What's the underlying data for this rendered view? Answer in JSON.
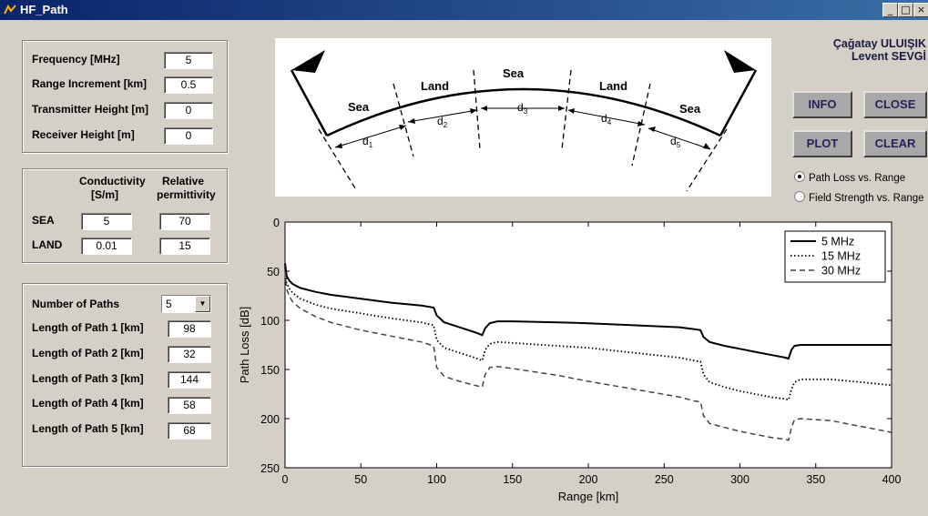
{
  "window": {
    "title": "HF_Path",
    "controls": [
      "_",
      "□",
      "×"
    ]
  },
  "params": {
    "frequency_label": "Frequency [MHz]",
    "frequency": "5",
    "range_inc_label": "Range Increment [km]",
    "range_inc": "0.5",
    "tx_height_label": "Transmitter Height [m]",
    "tx_height": "0",
    "rx_height_label": "Receiver Height [m]",
    "rx_height": "0"
  },
  "ground": {
    "conductivity_header": "Conductivity",
    "conductivity_unit": "[S/m]",
    "permittivity_header": "Relative",
    "permittivity_header2": "permittivity",
    "sea_label": "SEA",
    "sea_cond": "5",
    "sea_perm": "70",
    "land_label": "LAND",
    "land_cond": "0.01",
    "land_perm": "15"
  },
  "paths": {
    "num_label": "Number of Paths",
    "num_value": "5",
    "items": [
      {
        "label": "Length of Path 1 [km]",
        "value": "98"
      },
      {
        "label": "Length of Path 2 [km]",
        "value": "32"
      },
      {
        "label": "Length of Path 3 [km]",
        "value": "144"
      },
      {
        "label": "Length of Path 4 [km]",
        "value": "58"
      },
      {
        "label": "Length of Path 5 [km]",
        "value": "68"
      }
    ]
  },
  "diagram": {
    "segments": [
      "Sea",
      "Land",
      "Sea",
      "Land",
      "Sea"
    ],
    "distances": [
      "d",
      "d",
      "d",
      "d",
      "d"
    ],
    "subscripts": [
      "1",
      "2",
      "3",
      "4",
      "5"
    ]
  },
  "authors": {
    "line1": "Çağatay ULUIŞIK",
    "line2": "Levent SEVGİ"
  },
  "buttons": {
    "info": "INFO",
    "close": "CLOSE",
    "plot": "PLOT",
    "clear": "CLEAR"
  },
  "radios": {
    "path_loss": "Path Loss vs. Range",
    "field_strength": "Field Strength vs. Range",
    "selected": "path_loss"
  },
  "colors": {
    "window_bg": "#d4d0c8",
    "titlebar": "#0a246a",
    "button_bg": "#a8a8a8"
  },
  "chart_data": {
    "type": "line",
    "xlabel": "Range [km]",
    "ylabel": "Path Loss [dB]",
    "xlim": [
      0,
      400
    ],
    "ylim": [
      0,
      250
    ],
    "y_inverted": true,
    "xticks": [
      "0",
      "50",
      "100",
      "150",
      "200",
      "250",
      "300",
      "350",
      "400"
    ],
    "yticks": [
      "0",
      "50",
      "100",
      "150",
      "200",
      "250"
    ],
    "legend_position": "top-right",
    "series": [
      {
        "name": "5 MHz",
        "style": "solid",
        "x": [
          0,
          1,
          3,
          5,
          10,
          20,
          30,
          50,
          70,
          90,
          98,
          100,
          105,
          115,
          125,
          130,
          132,
          135,
          140,
          150,
          180,
          200,
          230,
          260,
          270,
          274,
          276,
          280,
          290,
          300,
          310,
          320,
          330,
          332,
          334,
          336,
          340,
          360,
          380,
          400
        ],
        "y": [
          42,
          55,
          60,
          63,
          67,
          71,
          74,
          78,
          82,
          85,
          87,
          95,
          102,
          107,
          112,
          115,
          108,
          103,
          101,
          101,
          102,
          103,
          105,
          107,
          109,
          110,
          117,
          122,
          126,
          129,
          132,
          135,
          138,
          139,
          130,
          126,
          125,
          125,
          125,
          125
        ]
      },
      {
        "name": "15 MHz",
        "style": "dotted",
        "x": [
          0,
          1,
          3,
          5,
          10,
          20,
          30,
          50,
          70,
          90,
          98,
          100,
          105,
          115,
          125,
          130,
          132,
          135,
          140,
          150,
          180,
          200,
          230,
          260,
          270,
          274,
          276,
          280,
          290,
          300,
          310,
          320,
          330,
          332,
          334,
          336,
          340,
          360,
          380,
          400
        ],
        "y": [
          46,
          62,
          68,
          72,
          78,
          84,
          88,
          93,
          98,
          102,
          105,
          120,
          128,
          133,
          138,
          141,
          130,
          124,
          122,
          123,
          126,
          128,
          133,
          138,
          141,
          142,
          155,
          163,
          168,
          172,
          175,
          178,
          180,
          181,
          170,
          163,
          160,
          160,
          163,
          166
        ]
      },
      {
        "name": "30 MHz",
        "style": "dashed",
        "x": [
          0,
          1,
          3,
          5,
          10,
          20,
          30,
          50,
          70,
          90,
          98,
          100,
          105,
          115,
          125,
          130,
          132,
          135,
          140,
          150,
          180,
          200,
          230,
          260,
          270,
          274,
          276,
          280,
          290,
          300,
          310,
          320,
          330,
          332,
          334,
          336,
          340,
          360,
          380,
          400
        ],
        "y": [
          50,
          68,
          76,
          81,
          88,
          96,
          102,
          110,
          116,
          122,
          126,
          148,
          157,
          162,
          166,
          168,
          155,
          148,
          147,
          149,
          156,
          162,
          170,
          178,
          182,
          183,
          197,
          205,
          209,
          213,
          216,
          219,
          221,
          222,
          209,
          201,
          200,
          202,
          208,
          214
        ]
      }
    ]
  }
}
